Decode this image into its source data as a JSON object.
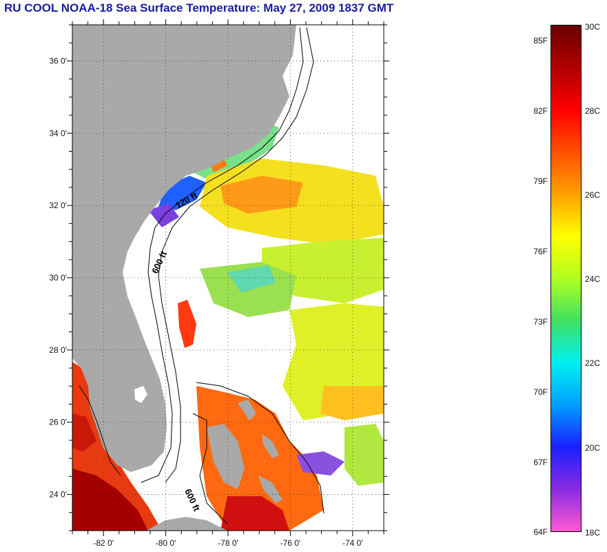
{
  "title": "RU COOL  NOAA-18  Sea Surface Temperature:  May 27, 2009 1837 GMT",
  "map": {
    "lon_range": [
      -83,
      -73
    ],
    "lat_range": [
      23,
      37
    ],
    "lon_ticks": [
      "-82 0'",
      "-80 0'",
      "-78 0'",
      "-76 0'",
      "-74 0'"
    ],
    "lat_ticks": [
      "36 0'",
      "34 0'",
      "32 0'",
      "30 0'",
      "28 0'",
      "26 0'",
      "24 0'"
    ],
    "contour_labels": [
      "120 ft",
      "600 ft",
      "600 ft"
    ],
    "grid": "dotted",
    "land_color": "#a9a9a9",
    "no_data_color": "#ffffff"
  },
  "colorbar": {
    "fahrenheit_labels": [
      "85F",
      "82F",
      "79F",
      "76F",
      "73F",
      "70F",
      "67F",
      "64F"
    ],
    "celsius_labels": [
      "30C",
      "28C",
      "26C",
      "24C",
      "22C",
      "20C",
      "18C"
    ],
    "range_c": [
      18,
      30
    ],
    "colors": [
      "#ff5ad2",
      "#8a2be2",
      "#1a20ff",
      "#00a0ff",
      "#00f0f0",
      "#40e060",
      "#b0ff20",
      "#ffff00",
      "#ffa000",
      "#ff5000",
      "#ff0000",
      "#b00000",
      "#6a0000"
    ]
  }
}
